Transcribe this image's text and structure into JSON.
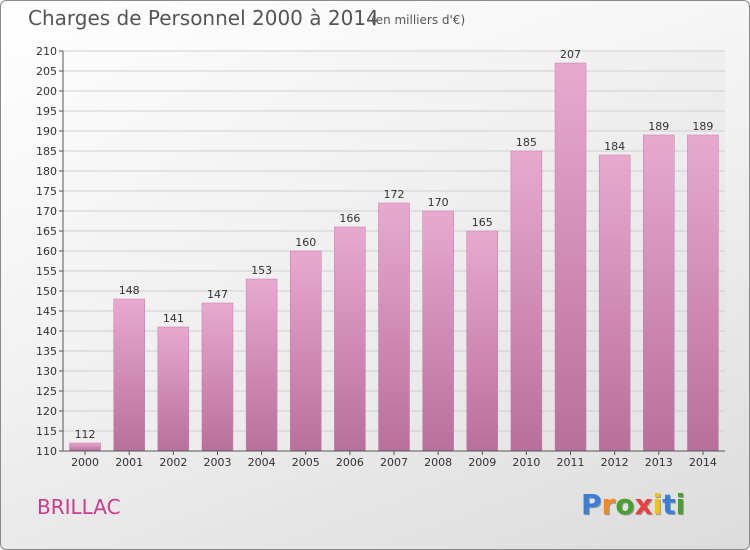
{
  "chart_data": {
    "type": "bar",
    "title": "Charges de Personnel 2000 à 2014",
    "subtitle": "(en milliers d'€)",
    "xlabel": "",
    "ylabel": "",
    "categories": [
      "2000",
      "2001",
      "2002",
      "2003",
      "2004",
      "2005",
      "2006",
      "2007",
      "2008",
      "2009",
      "2010",
      "2011",
      "2012",
      "2013",
      "2014"
    ],
    "values": [
      112,
      148,
      141,
      147,
      153,
      160,
      166,
      172,
      170,
      165,
      185,
      207,
      184,
      189,
      189
    ],
    "ylim": [
      110,
      210
    ],
    "yticks": [
      110,
      115,
      120,
      125,
      130,
      135,
      140,
      145,
      150,
      155,
      160,
      165,
      170,
      175,
      180,
      185,
      190,
      195,
      200,
      205,
      210
    ],
    "grid": true,
    "bar_color": "#d68ab8"
  },
  "entity": "BRILLAC",
  "brand": {
    "letters": [
      "P",
      "r",
      "o",
      "x",
      "i",
      "t",
      "i"
    ],
    "colors": [
      "#3a7fd5",
      "#f08a24",
      "#4aa02c",
      "#e83f3f",
      "#f2c012",
      "#3a7fd5",
      "#4aa02c"
    ]
  }
}
